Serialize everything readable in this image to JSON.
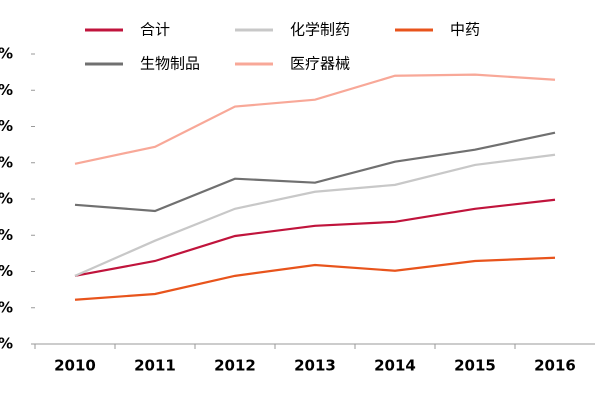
{
  "chart_data": {
    "type": "line",
    "categories": [
      "2010",
      "2011",
      "2012",
      "2013",
      "2014",
      "2015",
      "2016"
    ],
    "series": [
      {
        "name": "合计",
        "color": "#c0143c",
        "values": [
          18.8,
          22.9,
          29.8,
          32.6,
          33.7,
          37.3,
          39.8
        ]
      },
      {
        "name": "化学制药",
        "color": "#c8c8c8",
        "values": [
          18.8,
          28.5,
          37.3,
          42,
          43.9,
          49.4,
          52.2
        ]
      },
      {
        "name": "中药",
        "color": "#e8541c",
        "values": [
          12.2,
          13.8,
          18.8,
          21.8,
          20.2,
          22.9,
          23.8
        ]
      },
      {
        "name": "生物制品",
        "color": "#707070",
        "values": [
          38.4,
          36.7,
          45.6,
          44.5,
          50.3,
          53.6,
          58.3
        ]
      },
      {
        "name": "医疗器械",
        "color": "#f8a898",
        "values": [
          49.7,
          54.4,
          65.5,
          67.4,
          74,
          74.3,
          72.9
        ]
      }
    ],
    "ylim": [
      0,
      80
    ],
    "yticks": [
      {
        "value": 0,
        "label": "%"
      },
      {
        "value": 10,
        "label": "%"
      },
      {
        "value": 20,
        "label": "%"
      },
      {
        "value": 30,
        "label": "%"
      },
      {
        "value": 40,
        "label": "%"
      },
      {
        "value": 50,
        "label": "%"
      },
      {
        "value": 60,
        "label": "%"
      },
      {
        "value": 70,
        "label": "%"
      },
      {
        "value": 80,
        "label": "%"
      }
    ],
    "grid": false
  }
}
